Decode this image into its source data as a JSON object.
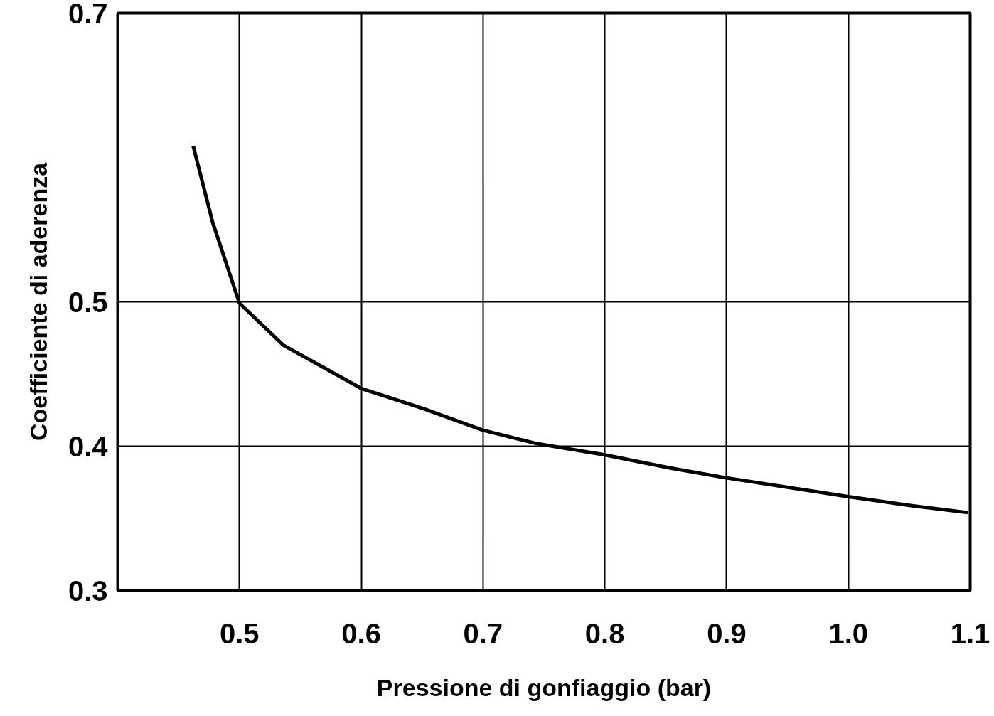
{
  "chart_data": {
    "type": "line",
    "xlabel": "Pressione di gonfiaggio (bar)",
    "ylabel": "Coefficiente di aderenza",
    "x": [
      0.462,
      0.478,
      0.5,
      0.536,
      0.6,
      0.651,
      0.7,
      0.743,
      0.8,
      0.853,
      0.9,
      1.0,
      1.05,
      1.098
    ],
    "series": [
      {
        "color": "#000000",
        "values": [
          0.608,
          0.555,
          0.499,
          0.47,
          0.44,
          0.426,
          0.411,
          0.402,
          0.394,
          0.385,
          0.378,
          0.365,
          0.359,
          0.354
        ]
      }
    ],
    "xlim": [
      0.4,
      1.1
    ],
    "xticks": [
      0.5,
      0.6,
      0.7,
      0.8,
      0.9,
      {
        "value": 1.0,
        "label": "1.0"
      },
      1.1
    ],
    "ylim": [
      0.3,
      0.7
    ],
    "yticks": [
      0.3,
      0.4,
      0.5,
      0.7
    ],
    "grid": true,
    "line_style": "solid",
    "marker": "none"
  }
}
